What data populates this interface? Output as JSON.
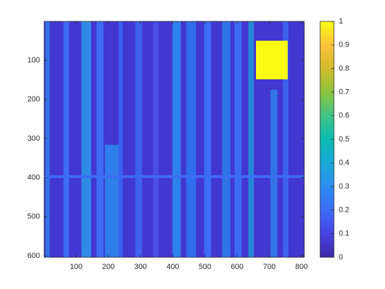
{
  "chart_data": {
    "type": "heatmap",
    "xlim": [
      0.5,
      808.5
    ],
    "ylim": [
      0.5,
      603.5
    ],
    "y_reversed": true,
    "xticks": [
      100,
      200,
      300,
      400,
      500,
      600,
      700,
      800
    ],
    "yticks": [
      100,
      200,
      300,
      400,
      500,
      600
    ],
    "clim": [
      0,
      1
    ],
    "colorbar_ticks": [
      0,
      0.1,
      0.2,
      0.3,
      0.4,
      0.5,
      0.6,
      0.7,
      0.8,
      0.9,
      1
    ],
    "colormap": [
      "#3e26a8",
      "#4543e3",
      "#3c6cf6",
      "#2b8ef0",
      "#1aa9d8",
      "#0cbbb3",
      "#40c487",
      "#8cc43e",
      "#d1bb2a",
      "#fcc33a",
      "#f9fb15"
    ]
  }
}
